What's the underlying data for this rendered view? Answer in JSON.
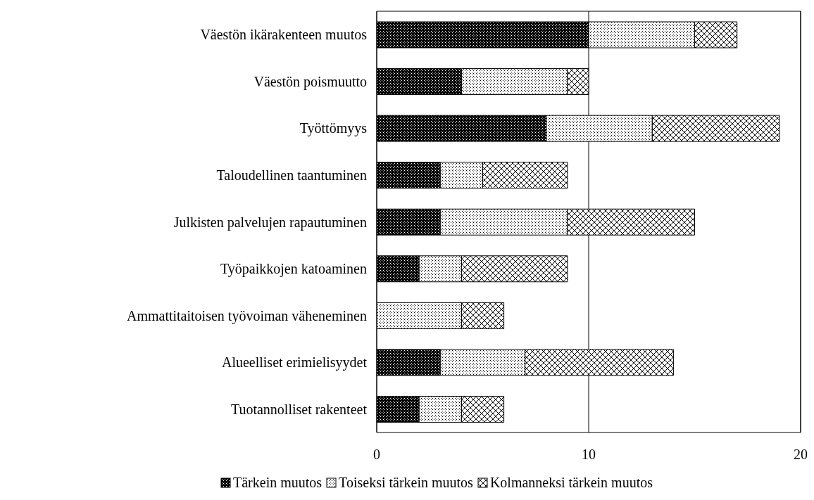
{
  "chart_data": {
    "type": "bar",
    "orientation": "horizontal",
    "stacked": true,
    "categories": [
      "Väestön ikärakenteen muutos",
      "Väestön poismuutto",
      "Työttömyys",
      "Taloudellinen taantuminen",
      "Julkisten palvelujen rapautuminen",
      "Työpaikkojen katoaminen",
      "Ammattitaitoisen työvoiman väheneminen",
      "Alueelliset erimielisyydet",
      "Tuotannolliset rakenteet"
    ],
    "series": [
      {
        "name": "Tärkein muutos",
        "color": "#000000",
        "values": [
          10,
          4,
          8,
          3,
          3,
          2,
          0,
          3,
          2
        ]
      },
      {
        "name": "Toiseksi tärkein muutos",
        "color": "#000000",
        "values": [
          5,
          5,
          5,
          2,
          6,
          2,
          4,
          4,
          2
        ]
      },
      {
        "name": "Kolmanneksi tärkein muutos",
        "color": "#000000",
        "values": [
          2,
          1,
          6,
          4,
          6,
          5,
          2,
          7,
          2
        ]
      }
    ],
    "xlim": [
      0,
      20
    ],
    "xticks": [
      0,
      10,
      20
    ],
    "grid": "x",
    "legend": "bottom"
  }
}
